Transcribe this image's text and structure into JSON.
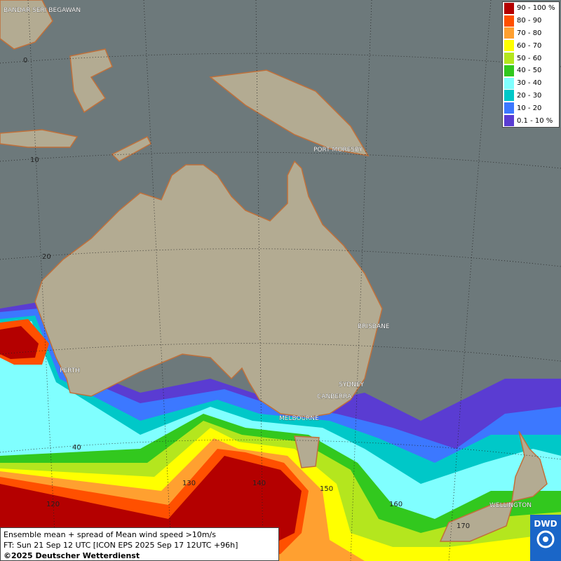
{
  "map": {
    "cities": [
      "BANDAR SERI BEGAWAN",
      "PORT MORESBY",
      "BRISBANE",
      "PERTH",
      "SYDNEY",
      "CANBERRA",
      "MELBOURNE",
      "WELLINGTON"
    ],
    "lat_labels": [
      "0",
      "10",
      "20",
      "40"
    ],
    "lon_labels": [
      "120",
      "130",
      "140",
      "150",
      "160",
      "170"
    ],
    "legend": [
      {
        "label": "90 - 100 %",
        "color": "#b40000"
      },
      {
        "label": "80 - 90",
        "color": "#ff5000"
      },
      {
        "label": "70 - 80",
        "color": "#ffa030"
      },
      {
        "label": "60 - 70",
        "color": "#ffff00"
      },
      {
        "label": "50 - 60",
        "color": "#b4e61e"
      },
      {
        "label": "40 - 50",
        "color": "#32c81e"
      },
      {
        "label": "30 - 40",
        "color": "#80ffff"
      },
      {
        "label": "20 - 30",
        "color": "#00c8c8"
      },
      {
        "label": "10 - 20",
        "color": "#3c78ff"
      },
      {
        "label": "0.1 - 10 %",
        "color": "#5a3cd2"
      }
    ],
    "footer": {
      "line1": "Ensemble mean + spread of Mean wind speed >10m/s",
      "line2": "FT: Sun 21 Sep 12 UTC [ICON EPS 2025 Sep 17 12UTC +96h]",
      "line3": "©2025 Deutscher Wetterdienst"
    },
    "logo": "DWD"
  }
}
